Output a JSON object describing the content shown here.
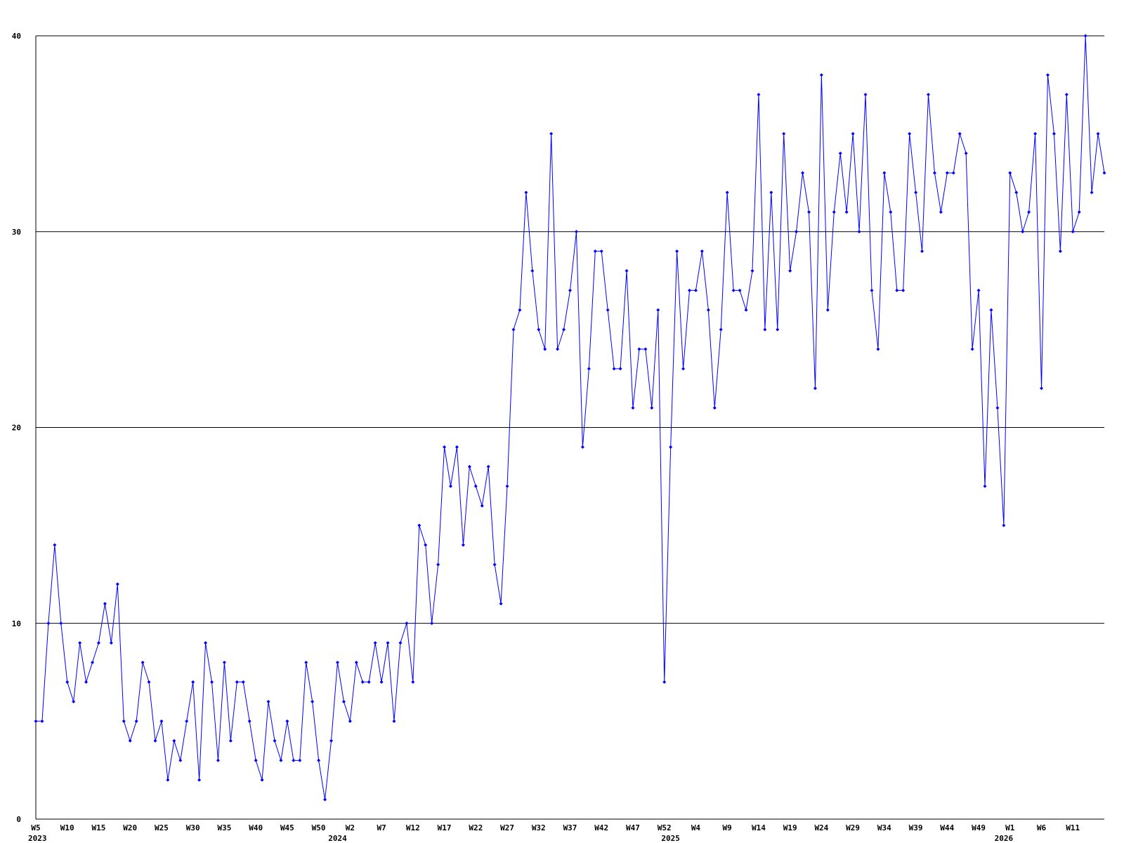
{
  "chart_data": {
    "type": "line",
    "categories": [
      "W5",
      null,
      null,
      null,
      null,
      "W10",
      null,
      null,
      null,
      null,
      "W15",
      null,
      null,
      null,
      null,
      "W20",
      null,
      null,
      null,
      null,
      "W25",
      null,
      null,
      null,
      null,
      "W30",
      null,
      null,
      null,
      null,
      "W35",
      null,
      null,
      null,
      null,
      "W40",
      null,
      null,
      null,
      null,
      "W45",
      null,
      null,
      null,
      null,
      "W50",
      null,
      null,
      null,
      null,
      "W2",
      null,
      null,
      null,
      null,
      "W7",
      null,
      null,
      null,
      null,
      "W12",
      null,
      null,
      null,
      null,
      "W17",
      null,
      null,
      null,
      null,
      "W22",
      null,
      null,
      null,
      null,
      "W27",
      null,
      null,
      null,
      null,
      "W32",
      null,
      null,
      null,
      null,
      "W37",
      null,
      null,
      null,
      null,
      "W42",
      null,
      null,
      null,
      null,
      "W47",
      null,
      null,
      null,
      null,
      "W52",
      null,
      null,
      null,
      null,
      "W4",
      null,
      null,
      null,
      null,
      "W9",
      null,
      null,
      null,
      null,
      "W14",
      null,
      null,
      null,
      null,
      "W19",
      null,
      null,
      null,
      null,
      "W24",
      null,
      null,
      null,
      null,
      "W29",
      null,
      null,
      null,
      null,
      "W34",
      null,
      null,
      null,
      null,
      "W39",
      null,
      null,
      null,
      null,
      "W44",
      null,
      null,
      null,
      null,
      "W49",
      null,
      null,
      null,
      null,
      "W1",
      null,
      null,
      null,
      null,
      "W6",
      null,
      null,
      null,
      null,
      "W11",
      null,
      null,
      null,
      null,
      null
    ],
    "years": [
      "2023",
      null,
      null,
      null,
      null,
      null,
      null,
      null,
      null,
      null,
      null,
      null,
      null,
      null,
      null,
      null,
      null,
      null,
      null,
      null,
      null,
      null,
      null,
      null,
      null,
      null,
      null,
      null,
      null,
      null,
      null,
      null,
      null,
      null,
      null,
      null,
      null,
      null,
      null,
      null,
      null,
      null,
      null,
      null,
      null,
      null,
      null,
      null,
      "2024",
      null,
      null,
      null,
      null,
      null,
      null,
      null,
      null,
      null,
      null,
      null,
      null,
      null,
      null,
      null,
      null,
      null,
      null,
      null,
      null,
      null,
      null,
      null,
      null,
      null,
      null,
      null,
      null,
      null,
      null,
      null,
      null,
      null,
      null,
      null,
      null,
      null,
      null,
      null,
      null,
      null,
      null,
      null,
      null,
      null,
      null,
      null,
      null,
      null,
      null,
      null,
      null,
      "2025",
      null,
      null,
      null,
      null,
      null,
      null,
      null,
      null,
      null,
      null,
      null,
      null,
      null,
      null,
      null,
      null,
      null,
      null,
      null,
      null,
      null,
      null,
      null,
      null,
      null,
      null,
      null,
      null,
      null,
      null,
      null,
      null,
      null,
      null,
      null,
      null,
      null,
      null,
      null,
      null,
      null,
      null,
      null,
      null,
      null,
      null,
      null,
      null,
      null,
      null,
      null,
      null,
      "2026",
      null,
      null,
      null,
      null,
      null,
      null,
      null,
      null,
      null,
      null,
      null,
      null,
      null,
      null,
      null,
      null
    ],
    "series": [
      {
        "color": "#0000ff",
        "values": [
          5,
          5,
          10,
          14,
          10,
          7,
          6,
          9,
          7,
          8,
          9,
          11,
          9,
          12,
          5,
          4,
          5,
          8,
          7,
          4,
          5,
          2,
          4,
          3,
          5,
          7,
          2,
          9,
          7,
          3,
          8,
          4,
          7,
          7,
          5,
          3,
          2,
          6,
          4,
          3,
          5,
          3,
          3,
          8,
          6,
          3,
          1,
          4,
          8,
          6,
          5,
          8,
          7,
          7,
          9,
          7,
          9,
          5,
          9,
          10,
          7,
          15,
          14,
          10,
          13,
          19,
          17,
          19,
          14,
          18,
          17,
          16,
          18,
          13,
          11,
          17,
          25,
          26,
          32,
          28,
          25,
          24,
          35,
          24,
          25,
          27,
          30,
          19,
          23,
          29,
          29,
          26,
          23,
          23,
          28,
          21,
          24,
          24,
          21,
          26,
          7,
          19,
          29,
          23,
          27,
          27,
          29,
          26,
          21,
          25,
          32,
          27,
          27,
          26,
          28,
          37,
          25,
          32,
          25,
          35,
          28,
          30,
          33,
          31,
          22,
          38,
          26,
          31,
          34,
          31,
          35,
          30,
          37,
          27,
          24,
          33,
          31,
          27,
          27,
          35,
          32,
          29,
          37,
          33,
          31,
          33,
          33,
          35,
          34,
          24,
          27,
          17,
          26,
          21,
          15,
          33,
          32,
          30,
          31,
          35,
          22,
          38,
          35,
          29,
          37,
          30,
          31,
          40,
          32,
          35,
          33
        ]
      }
    ],
    "ylim": [
      0,
      40
    ],
    "yticks": [
      0,
      10,
      20,
      30,
      40
    ],
    "grid": true
  }
}
